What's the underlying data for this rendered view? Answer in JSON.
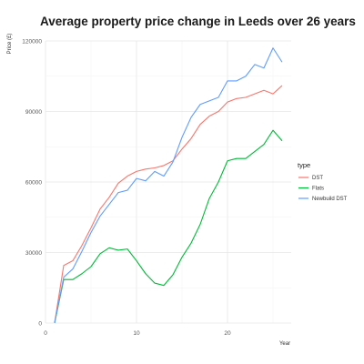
{
  "chart_data": {
    "type": "line",
    "title": "Average property price change in Leeds over 26 years",
    "xlabel": "Year",
    "ylabel": "Price (£)",
    "xlim": [
      0,
      27
    ],
    "ylim": [
      0,
      120000
    ],
    "xticks": [
      0,
      10,
      20
    ],
    "yticks": [
      0,
      30000,
      60000,
      90000,
      120000
    ],
    "xtick_labels": [
      "0",
      "10",
      "20"
    ],
    "ytick_labels": [
      "0",
      "30000",
      "60000",
      "90000",
      "120000"
    ],
    "grid": true,
    "legend": {
      "title": "type",
      "position": "right"
    },
    "x": [
      1,
      2,
      3,
      4,
      5,
      6,
      7,
      8,
      9,
      10,
      11,
      12,
      13,
      14,
      15,
      16,
      17,
      18,
      19,
      20,
      21,
      22,
      23,
      24,
      25,
      26
    ],
    "series": [
      {
        "name": "DST",
        "color": "#F8766D",
        "values": [
          0,
          24500,
          26500,
          33000,
          40500,
          48500,
          53500,
          59500,
          62500,
          64500,
          65500,
          66000,
          67000,
          69000,
          74000,
          78500,
          84500,
          88000,
          90000,
          94000,
          95500,
          96000,
          97500,
          99000,
          97500,
          101000
        ]
      },
      {
        "name": "Flats",
        "color": "#00BA38",
        "values": [
          0,
          18500,
          18500,
          21000,
          24000,
          29500,
          32000,
          31000,
          31500,
          26500,
          21000,
          17000,
          16000,
          20500,
          28000,
          34000,
          42000,
          53000,
          60000,
          69000,
          70000,
          70000,
          73000,
          76000,
          82000,
          77500
        ]
      },
      {
        "name": "Newbuild DST",
        "color": "#619CFF",
        "values": [
          0,
          19500,
          23000,
          30500,
          38500,
          45500,
          50500,
          55500,
          56500,
          61500,
          60500,
          64500,
          62500,
          68500,
          79000,
          87500,
          93000,
          94500,
          96000,
          103000,
          103000,
          105000,
          110000,
          108500,
          117000,
          111000
        ]
      }
    ]
  }
}
